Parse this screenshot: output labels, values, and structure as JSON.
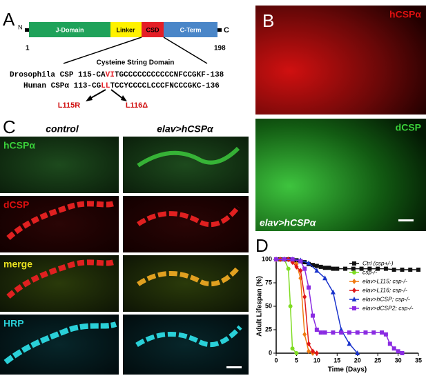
{
  "panel_a": {
    "letter": "A",
    "n_label": "N",
    "c_label": "C",
    "domains": [
      "J-Domain",
      "Linker",
      "CSD",
      "C-Term"
    ],
    "start": "1",
    "end": "198",
    "subtitle": "Cysteine String Domain",
    "sequences": [
      {
        "species": "Drosophila CSP",
        "prefix": "115-CA",
        "highlight": "VI",
        "rest": "TGCCCCCCCCCCCNFCCGKF-138"
      },
      {
        "species": "Human CSPα",
        "prefix": "113-CG",
        "highlight": "LL",
        "rest": "TCCYCCCCLCCCFNCCCGKC-136"
      }
    ],
    "mutations": [
      "L115R",
      "L116Δ"
    ]
  },
  "panel_b": {
    "letter": "B",
    "labels": [
      "hCSPα",
      "dCSP"
    ],
    "genotype": "elav>hCSPα"
  },
  "panel_c": {
    "letter": "C",
    "columns": [
      "control",
      "elav>hCSPα"
    ],
    "rows": [
      "hCSPα",
      "dCSP",
      "merge",
      "HRP"
    ]
  },
  "chart_data": {
    "type": "line",
    "letter": "D",
    "xlabel": "Time (Days)",
    "ylabel": "Adult Lifespan (%)",
    "xlim": [
      0,
      35
    ],
    "xticks": [
      0,
      5,
      10,
      15,
      20,
      25,
      30,
      35
    ],
    "ylim": [
      0,
      100
    ],
    "yticks": [
      0,
      25,
      50,
      75,
      100
    ],
    "legend": "upper right",
    "series": [
      {
        "name": "Ctrl (csp+/-)",
        "color": "#111111",
        "marker": "square",
        "x": [
          0,
          1,
          2,
          3,
          4,
          5,
          6,
          7,
          8,
          9,
          10,
          11,
          12,
          13,
          14,
          15,
          17,
          19,
          21,
          23,
          25,
          27,
          29,
          31,
          33,
          35
        ],
        "values": [
          100,
          100,
          100,
          100,
          100,
          99,
          98,
          97,
          95,
          94,
          93,
          92,
          91,
          91,
          90,
          90,
          90,
          90,
          90,
          90,
          90,
          90,
          89,
          89,
          89,
          89
        ]
      },
      {
        "name": "csp-/-",
        "color": "#7fdc22",
        "marker": "circle",
        "x": [
          0,
          1,
          2,
          3,
          3.5,
          4,
          5
        ],
        "values": [
          100,
          100,
          100,
          90,
          50,
          5,
          0
        ]
      },
      {
        "name": "elav>L115; csp-/-",
        "color": "#f07a10",
        "marker": "diamond",
        "x": [
          0,
          1,
          2,
          3,
          4,
          5,
          6,
          7,
          8,
          9
        ],
        "values": [
          100,
          100,
          100,
          100,
          98,
          95,
          80,
          20,
          2,
          0
        ]
      },
      {
        "name": "elav>L116; csp-/-",
        "color": "#e01818",
        "marker": "diamond",
        "x": [
          0,
          1,
          2,
          3,
          4,
          5,
          6,
          7,
          8,
          9,
          10
        ],
        "values": [
          100,
          100,
          100,
          100,
          97,
          92,
          88,
          60,
          10,
          2,
          0
        ]
      },
      {
        "name": "elav>hCSP; csp-/-",
        "color": "#1a33cc",
        "marker": "triangle",
        "x": [
          0,
          2,
          4,
          6,
          8,
          10,
          12,
          14,
          16,
          18,
          20
        ],
        "values": [
          100,
          100,
          100,
          99,
          96,
          88,
          80,
          65,
          25,
          10,
          0
        ]
      },
      {
        "name": "elav>dCSP2; csp-/-",
        "color": "#8a2be2",
        "marker": "square",
        "x": [
          0,
          2,
          4,
          6,
          7,
          8,
          9,
          10,
          11,
          12,
          14,
          16,
          18,
          20,
          22,
          24,
          26,
          27,
          28,
          29,
          30,
          31
        ],
        "values": [
          100,
          100,
          100,
          98,
          90,
          70,
          40,
          25,
          22,
          22,
          22,
          22,
          22,
          22,
          22,
          22,
          22,
          20,
          10,
          5,
          2,
          0
        ]
      }
    ]
  }
}
